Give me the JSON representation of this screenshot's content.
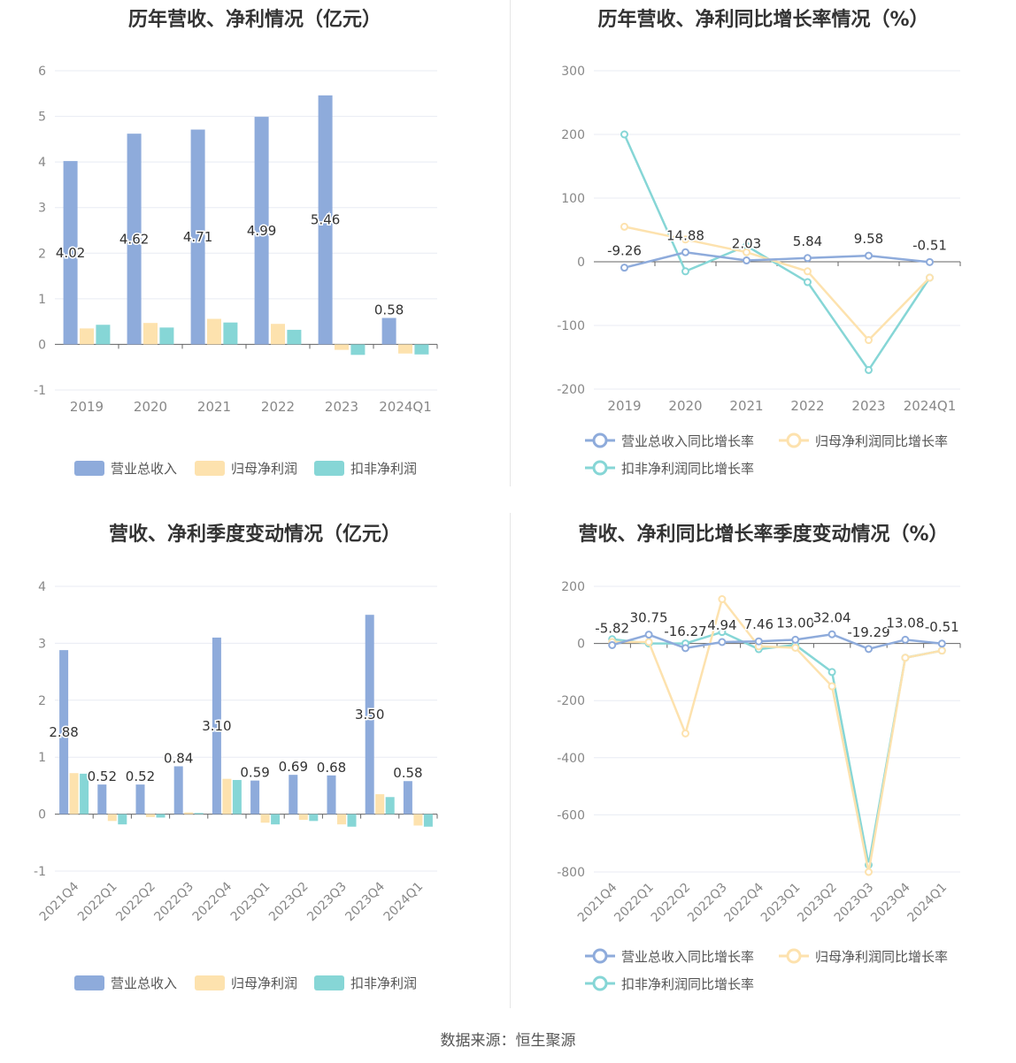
{
  "footer": {
    "source": "数据来源：恒生聚源"
  },
  "colors": {
    "revenue": "#8eabdb",
    "netprofit": "#fde2ae",
    "deducted": "#86d6d6",
    "axis": "#888888",
    "grid": "#e8ebf3"
  },
  "legend": {
    "bar": [
      "营业总收入",
      "归母净利润",
      "扣非净利润"
    ],
    "line": [
      "营业总收入同比增长率",
      "归母净利润同比增长率",
      "扣非净利润同比增长率"
    ]
  },
  "chart_data": [
    {
      "type": "bar",
      "title": "历年营收、净利情况（亿元）",
      "categories": [
        "2019",
        "2020",
        "2021",
        "2022",
        "2023",
        "2024Q1"
      ],
      "ylim": [
        -1,
        6
      ],
      "yticks": [
        -1,
        0,
        1,
        2,
        3,
        4,
        5,
        6
      ],
      "series": [
        {
          "name": "营业总收入",
          "values": [
            4.02,
            4.62,
            4.71,
            4.99,
            5.46,
            0.58
          ],
          "labels": [
            "4.02",
            "4.62",
            "4.71",
            "4.99",
            "5.46",
            "0.58"
          ]
        },
        {
          "name": "归母净利润",
          "values": [
            0.35,
            0.47,
            0.56,
            0.45,
            -0.12,
            -0.2
          ]
        },
        {
          "name": "扣非净利润",
          "values": [
            0.43,
            0.37,
            0.48,
            0.32,
            -0.23,
            -0.22
          ]
        }
      ],
      "grid": true,
      "legend_position": "bottom"
    },
    {
      "type": "line",
      "title": "历年营收、净利同比增长率情况（%）",
      "categories": [
        "2019",
        "2020",
        "2021",
        "2022",
        "2023",
        "2024Q1"
      ],
      "ylim": [
        -200,
        300
      ],
      "yticks": [
        -200,
        -100,
        0,
        100,
        200,
        300
      ],
      "series": [
        {
          "name": "营业总收入同比增长率",
          "values": [
            -9.26,
            14.88,
            2.03,
            5.84,
            9.58,
            -0.51
          ],
          "labels": [
            "-9.26",
            "14.88",
            "2.03",
            "5.84",
            "9.58",
            "-0.51"
          ]
        },
        {
          "name": "归母净利润同比增长率",
          "values": [
            55,
            35,
            15,
            -15,
            -123,
            -25
          ]
        },
        {
          "name": "扣非净利润同比增长率",
          "values": [
            200,
            -15,
            25,
            -32,
            -170,
            -25
          ]
        }
      ],
      "grid": true,
      "legend_position": "bottom"
    },
    {
      "type": "bar",
      "title": "营收、净利季度变动情况（亿元）",
      "categories": [
        "2021Q4",
        "2022Q1",
        "2022Q2",
        "2022Q3",
        "2022Q4",
        "2023Q1",
        "2023Q2",
        "2023Q3",
        "2023Q4",
        "2024Q1"
      ],
      "ylim": [
        -1,
        4
      ],
      "yticks": [
        -1,
        0,
        1,
        2,
        3,
        4
      ],
      "series": [
        {
          "name": "营业总收入",
          "values": [
            2.88,
            0.52,
            0.52,
            0.84,
            3.1,
            0.59,
            0.69,
            0.68,
            3.5,
            0.58
          ],
          "labels": [
            "2.88",
            "0.52",
            "0.52",
            "0.84",
            "3.10",
            "0.59",
            "0.69",
            "0.68",
            "3.50",
            "0.58"
          ]
        },
        {
          "name": "归母净利润",
          "values": [
            0.72,
            -0.12,
            -0.05,
            0.03,
            0.62,
            -0.15,
            -0.1,
            -0.18,
            0.35,
            -0.2
          ]
        },
        {
          "name": "扣非净利润",
          "values": [
            0.71,
            -0.18,
            -0.06,
            0.02,
            0.6,
            -0.18,
            -0.12,
            -0.22,
            0.3,
            -0.22
          ]
        }
      ],
      "grid": true,
      "legend_position": "bottom"
    },
    {
      "type": "line",
      "title": "营收、净利同比增长率季度变动情况（%）",
      "categories": [
        "2021Q4",
        "2022Q1",
        "2022Q2",
        "2022Q3",
        "2022Q4",
        "2023Q1",
        "2023Q2",
        "2023Q3",
        "2023Q4",
        "2024Q1"
      ],
      "ylim": [
        -800,
        200
      ],
      "yticks": [
        -800,
        -600,
        -400,
        -200,
        0,
        200
      ],
      "series": [
        {
          "name": "营业总收入同比增长率",
          "values": [
            -5.82,
            30.75,
            -16.27,
            4.94,
            7.46,
            13.0,
            32.04,
            -19.29,
            13.08,
            -0.51
          ],
          "labels": [
            "-5.82",
            "30.75",
            "-16.27",
            "4.94",
            "7.46",
            "13.00",
            "32.04",
            "-19.29",
            "13.08",
            "-0.51"
          ]
        },
        {
          "name": "归母净利润同比增长率",
          "values": [
            5,
            5,
            -315,
            155,
            -10,
            -15,
            -150,
            -800,
            -50,
            -25
          ]
        },
        {
          "name": "扣非净利润同比增长率",
          "values": [
            15,
            0,
            0,
            40,
            -20,
            -5,
            -100,
            -775,
            -50,
            -25
          ]
        }
      ],
      "grid": true,
      "legend_position": "bottom"
    }
  ]
}
